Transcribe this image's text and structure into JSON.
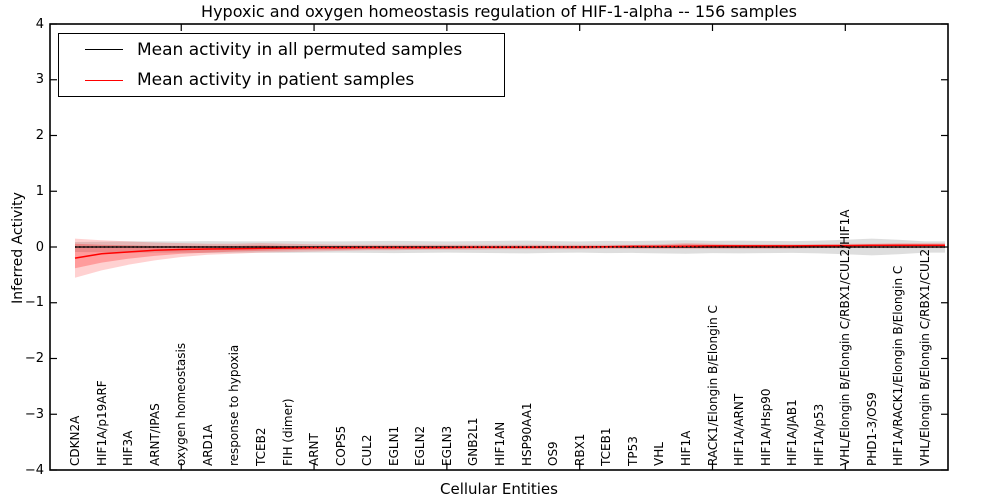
{
  "chart_data": {
    "type": "line",
    "title": "Hypoxic and oxygen homeostasis regulation of HIF-1-alpha -- 156 samples",
    "xlabel": "Cellular Entities",
    "ylabel": "Inferred Activity",
    "ylim": [
      -4,
      4
    ],
    "ytick_labels": [
      "4",
      "3",
      "2",
      "1",
      "0",
      "−1",
      "−2",
      "−3",
      "−4"
    ],
    "ytick_values": [
      4,
      3,
      2,
      1,
      0,
      -1,
      -2,
      -3,
      -4
    ],
    "xtick_positions_1indexed": [
      5,
      10,
      15,
      20,
      25,
      30
    ],
    "grid": false,
    "legend_position": "upper left",
    "categories": [
      "CDKN2A",
      "HIF1A/p19ARF",
      "HIF3A",
      "ARNT/IPAS",
      "oxygen homeostasis",
      "ARD1A",
      "response to hypoxia",
      "TCEB2",
      "FIH (dimer)",
      "ARNT",
      "COPS5",
      "CUL2",
      "EGLN1",
      "EGLN2",
      "EGLN3",
      "GNB2L1",
      "HIF1AN",
      "HSP90AA1",
      "OS9",
      "RBX1",
      "TCEB1",
      "TP53",
      "VHL",
      "HIF1A",
      "RACK1/Elongin B/Elongin C",
      "HIF1A/ARNT",
      "HIF1A/Hsp90",
      "HIF1A/JAB1",
      "HIF1A/p53",
      "VHL/Elongin B/Elongin C/RBX1/CUL2/HIF1A",
      "PHD1-3/OS9",
      "HIF1A/RACK1/Elongin B/Elongin C",
      "VHL/Elongin B/Elongin C/RBX1/CUL2"
    ],
    "series": [
      {
        "name": "Mean activity in all permuted samples",
        "color": "#000000",
        "style": "solid",
        "values": [
          0,
          0,
          0,
          0,
          0,
          0,
          0,
          0,
          0,
          0,
          0,
          0,
          0,
          0,
          0,
          0,
          0,
          0,
          0,
          0,
          0,
          0,
          0,
          0,
          0,
          0,
          0,
          0,
          0,
          0,
          0,
          0,
          0
        ]
      },
      {
        "name": "Mean activity in patient samples",
        "color": "#ff0000",
        "style": "solid",
        "values": [
          -0.2,
          -0.12,
          -0.09,
          -0.06,
          -0.045,
          -0.035,
          -0.03,
          -0.025,
          -0.02,
          -0.015,
          -0.015,
          -0.01,
          -0.01,
          -0.01,
          -0.01,
          -0.005,
          -0.005,
          -0.005,
          0,
          0,
          0.005,
          0.01,
          0.01,
          0.015,
          0.02,
          0.02,
          0.02,
          0.02,
          0.025,
          0.025,
          0.03,
          0.03,
          0.03
        ]
      }
    ],
    "zero_reference_line": {
      "value": 0,
      "color": "#000000",
      "style": "dotted"
    },
    "bands": [
      {
        "name": "permuted-samples-range",
        "color": "rgba(0,0,0,0.13)",
        "upper": [
          0.09,
          0.095,
          0.1,
          0.1,
          0.1,
          0.105,
          0.1,
          0.1,
          0.105,
          0.1,
          0.1,
          0.105,
          0.11,
          0.105,
          0.1,
          0.105,
          0.11,
          0.115,
          0.105,
          0.1,
          0.11,
          0.105,
          0.115,
          0.12,
          0.11,
          0.115,
          0.11,
          0.105,
          0.115,
          0.13,
          0.15,
          0.13,
          0.1
        ],
        "lower": [
          -0.09,
          -0.095,
          -0.1,
          -0.1,
          -0.1,
          -0.105,
          -0.1,
          -0.1,
          -0.105,
          -0.1,
          -0.1,
          -0.105,
          -0.11,
          -0.105,
          -0.1,
          -0.105,
          -0.11,
          -0.115,
          -0.105,
          -0.1,
          -0.11,
          -0.105,
          -0.115,
          -0.12,
          -0.11,
          -0.115,
          -0.11,
          -0.105,
          -0.115,
          -0.13,
          -0.15,
          -0.13,
          -0.1
        ]
      },
      {
        "name": "patient-samples-range-outer",
        "color": "rgba(255,0,0,0.18)",
        "upper": [
          0.15,
          0.12,
          0.1,
          0.08,
          0.07,
          0.06,
          0.06,
          0.07,
          0.06,
          0.05,
          0.04,
          0.04,
          0.04,
          0.04,
          0.04,
          0.04,
          0.04,
          0.04,
          0.04,
          0.04,
          0.04,
          0.04,
          0.05,
          0.07,
          0.06,
          0.05,
          0.05,
          0.05,
          0.05,
          0.06,
          0.06,
          0.07,
          0.07
        ],
        "lower": [
          -0.55,
          -0.42,
          -0.32,
          -0.24,
          -0.18,
          -0.14,
          -0.12,
          -0.1,
          -0.09,
          -0.08,
          -0.07,
          -0.06,
          -0.06,
          -0.05,
          -0.05,
          -0.05,
          -0.04,
          -0.04,
          -0.04,
          -0.04,
          -0.03,
          -0.03,
          -0.03,
          -0.03,
          -0.03,
          -0.03,
          -0.03,
          -0.03,
          -0.02,
          -0.02,
          -0.02,
          -0.02,
          -0.02
        ]
      },
      {
        "name": "patient-samples-range-inner",
        "color": "rgba(255,0,0,0.25)",
        "upper": [
          0.06,
          0.04,
          0.03,
          0.02,
          0.02,
          0.02,
          0.02,
          0.03,
          0.02,
          0.02,
          0.02,
          0.02,
          0.02,
          0.02,
          0.02,
          0.02,
          0.02,
          0.02,
          0.02,
          0.02,
          0.02,
          0.03,
          0.03,
          0.05,
          0.04,
          0.03,
          0.03,
          0.03,
          0.03,
          0.04,
          0.04,
          0.05,
          0.05
        ],
        "lower": [
          -0.38,
          -0.28,
          -0.21,
          -0.16,
          -0.12,
          -0.1,
          -0.08,
          -0.07,
          -0.06,
          -0.05,
          -0.05,
          -0.04,
          -0.04,
          -0.04,
          -0.03,
          -0.03,
          -0.03,
          -0.03,
          -0.03,
          -0.03,
          -0.02,
          -0.02,
          -0.02,
          -0.02,
          -0.02,
          -0.02,
          -0.02,
          -0.02,
          -0.01,
          -0.01,
          -0.01,
          -0.01,
          -0.01
        ]
      }
    ]
  },
  "legend": {
    "entries": [
      {
        "label": "Mean activity in all permuted samples",
        "color": "#000000"
      },
      {
        "label": "Mean activity in patient samples",
        "color": "#ff0000"
      }
    ]
  }
}
